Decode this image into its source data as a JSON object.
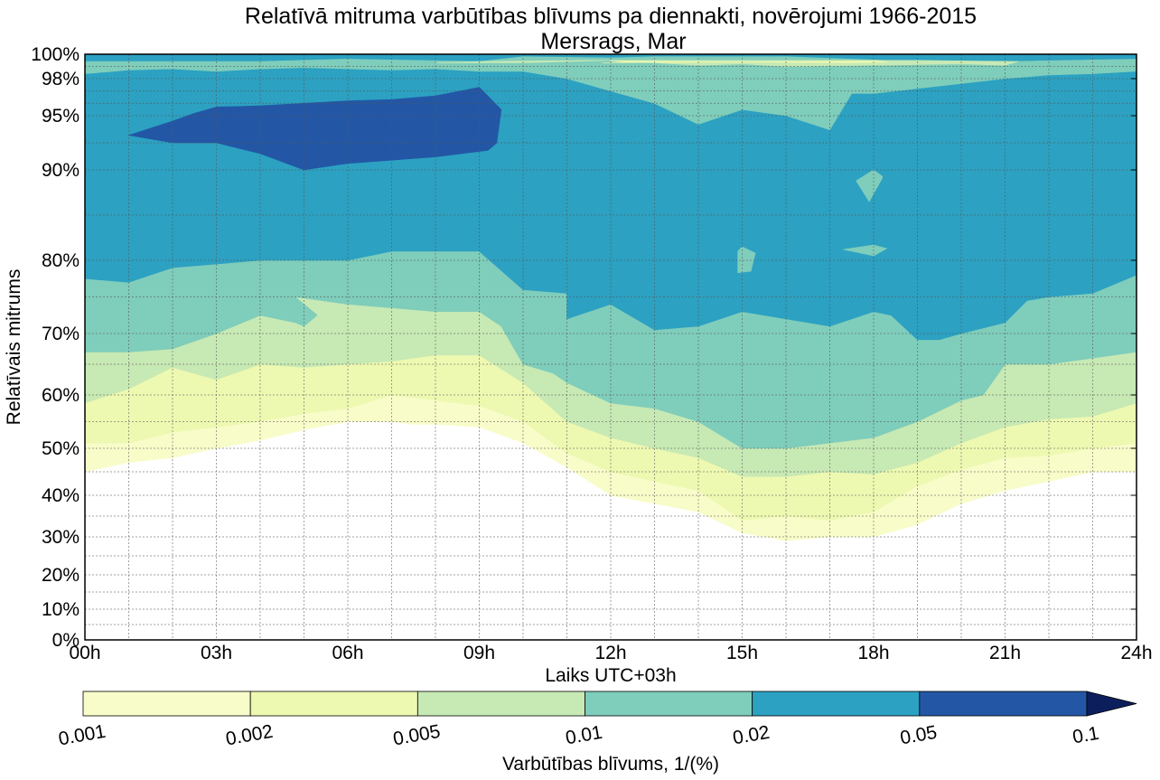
{
  "chart_data": {
    "type": "contourf",
    "title": "Relatīvā mitruma varbūtības blīvums pa diennakti, novērojumi 1966-2015",
    "subtitle": "Mersrags, Mar",
    "xlabel": "Laiks UTC+03h",
    "ylabel": "Relatīvais mitrums",
    "xlim": [
      0,
      24
    ],
    "ylim": [
      0,
      100
    ],
    "x_ticks": [
      0,
      3,
      6,
      9,
      12,
      15,
      18,
      21,
      24
    ],
    "x_tick_labels": [
      "00h",
      "03h",
      "06h",
      "09h",
      "12h",
      "15h",
      "18h",
      "21h",
      "24h"
    ],
    "x_minor_step": 1,
    "y_scale": "nonlinear (expanded near 100%)",
    "y_ticks": [
      0,
      10,
      20,
      30,
      40,
      50,
      60,
      70,
      80,
      90,
      95,
      98,
      100
    ],
    "y_tick_labels": [
      "0%",
      "10%",
      "20%",
      "30%",
      "40%",
      "50%",
      "60%",
      "70%",
      "80%",
      "90%",
      "95%",
      "98%",
      "100%"
    ],
    "grid": true,
    "colorbar": {
      "label": "Varbūtības blīvums, 1/(%)",
      "placement": "bottom",
      "levels": [
        0.001,
        0.002,
        0.005,
        0.01,
        0.02,
        0.05,
        0.1
      ],
      "level_labels": [
        "0.001",
        "0.002",
        "0.005",
        "0.01",
        "0.02",
        "0.05",
        "0.1"
      ],
      "colors": [
        "#f8fcc9",
        "#edf8b1",
        "#c7e9b4",
        "#7fcdbb",
        "#2ca1c2",
        "#2357a6",
        "#0c1f5c"
      ],
      "extend": "max"
    },
    "bands": [
      {
        "level": "0.001-0.002",
        "color": "#f8fcc9",
        "polygon": [
          [
            0,
            45
          ],
          [
            1,
            47
          ],
          [
            2,
            48
          ],
          [
            3,
            50
          ],
          [
            4,
            51.5
          ],
          [
            5,
            53.5
          ],
          [
            6,
            55
          ],
          [
            7,
            55
          ],
          [
            7.5,
            54.5
          ],
          [
            8,
            54.5
          ],
          [
            9,
            54
          ],
          [
            10,
            51
          ],
          [
            11,
            46
          ],
          [
            12,
            40
          ],
          [
            13,
            38
          ],
          [
            14,
            36
          ],
          [
            15,
            31
          ],
          [
            16,
            29
          ],
          [
            17,
            30
          ],
          [
            18,
            30
          ],
          [
            19,
            33
          ],
          [
            20,
            38
          ],
          [
            21,
            41
          ],
          [
            22,
            43
          ],
          [
            23,
            45
          ],
          [
            24,
            45
          ],
          [
            24,
            100
          ],
          [
            0,
            100
          ]
        ]
      },
      {
        "level": "0.002-0.005",
        "color": "#edf8b1",
        "polygon": [
          [
            0,
            51
          ],
          [
            1,
            51
          ],
          [
            2,
            53
          ],
          [
            3,
            54
          ],
          [
            4,
            55
          ],
          [
            5,
            56.5
          ],
          [
            6,
            57.5
          ],
          [
            7,
            60
          ],
          [
            8,
            59
          ],
          [
            9,
            58
          ],
          [
            10,
            55
          ],
          [
            11,
            49
          ],
          [
            12,
            45
          ],
          [
            13,
            43
          ],
          [
            14,
            41
          ],
          [
            15,
            34
          ],
          [
            16,
            35
          ],
          [
            17,
            34
          ],
          [
            18,
            36
          ],
          [
            19,
            42
          ],
          [
            20,
            45.5
          ],
          [
            21,
            48
          ],
          [
            22,
            48.5
          ],
          [
            23,
            50
          ],
          [
            24,
            51
          ],
          [
            24,
            100
          ],
          [
            0,
            100
          ]
        ]
      },
      {
        "level": "0.005-0.01",
        "color": "#c7e9b4",
        "polygon": [
          [
            0,
            58.5
          ],
          [
            1,
            61
          ],
          [
            2,
            64.5
          ],
          [
            3,
            62.5
          ],
          [
            4,
            65
          ],
          [
            5,
            64.5
          ],
          [
            6,
            65
          ],
          [
            7,
            65.5
          ],
          [
            8,
            66.5
          ],
          [
            9,
            66.5
          ],
          [
            10,
            62
          ],
          [
            11,
            55
          ],
          [
            12,
            52
          ],
          [
            13,
            50
          ],
          [
            14,
            48
          ],
          [
            15,
            44
          ],
          [
            16,
            44
          ],
          [
            17,
            45
          ],
          [
            18,
            44.5
          ],
          [
            19,
            47
          ],
          [
            20,
            51
          ],
          [
            21,
            54
          ],
          [
            22,
            55.5
          ],
          [
            23,
            56
          ],
          [
            24,
            58.5
          ],
          [
            24,
            100
          ],
          [
            0,
            100
          ]
        ]
      },
      {
        "level": "0.01-0.02",
        "color": "#7fcdbb",
        "polygon": [
          [
            0,
            67
          ],
          [
            1,
            67
          ],
          [
            2,
            67.5
          ],
          [
            3,
            70
          ],
          [
            4,
            72.5
          ],
          [
            4.8,
            71.5
          ],
          [
            5,
            71
          ],
          [
            5.3,
            72.5
          ],
          [
            4.8,
            75
          ],
          [
            6,
            74
          ],
          [
            7,
            73.5
          ],
          [
            8,
            73
          ],
          [
            9,
            73
          ],
          [
            9.5,
            71
          ],
          [
            10,
            65
          ],
          [
            10.7,
            63.5
          ],
          [
            11,
            62
          ],
          [
            12,
            58.5
          ],
          [
            13,
            57.5
          ],
          [
            14,
            55
          ],
          [
            15,
            50
          ],
          [
            16,
            50
          ],
          [
            17,
            51
          ],
          [
            18,
            52
          ],
          [
            19,
            55
          ],
          [
            20,
            59
          ],
          [
            20.5,
            60
          ],
          [
            21,
            65
          ],
          [
            22,
            65
          ],
          [
            23,
            66
          ],
          [
            24,
            67
          ],
          [
            24,
            100
          ],
          [
            0,
            100
          ]
        ]
      },
      {
        "level": "0.02-0.05",
        "color": "#2ca1c2",
        "polygon": [
          [
            0,
            77.5
          ],
          [
            1,
            77
          ],
          [
            2,
            79
          ],
          [
            3,
            79.5
          ],
          [
            4,
            80
          ],
          [
            5,
            80
          ],
          [
            6,
            80
          ],
          [
            7,
            81
          ],
          [
            8,
            81
          ],
          [
            9,
            81
          ],
          [
            10,
            76
          ],
          [
            11,
            75.5
          ],
          [
            11,
            72
          ],
          [
            12,
            74
          ],
          [
            13,
            70.5
          ],
          [
            14,
            71
          ],
          [
            15,
            73
          ],
          [
            16,
            72
          ],
          [
            17,
            71
          ],
          [
            18,
            73
          ],
          [
            18.4,
            72.5
          ],
          [
            19,
            69
          ],
          [
            19.5,
            69
          ],
          [
            20,
            70
          ],
          [
            21,
            71.5
          ],
          [
            21.5,
            74.5
          ],
          [
            22,
            75
          ],
          [
            23,
            75.5
          ],
          [
            24,
            78
          ],
          [
            24,
            100
          ],
          [
            0,
            100
          ]
        ]
      },
      {
        "level": "0.01-0.02 (upper)",
        "color": "#7fcdbb",
        "polygon": [
          [
            0,
            98.4
          ],
          [
            1,
            98.7
          ],
          [
            2,
            98.8
          ],
          [
            3,
            98.6
          ],
          [
            4,
            98.8
          ],
          [
            5,
            98.9
          ],
          [
            6,
            98.8
          ],
          [
            7,
            98.7
          ],
          [
            8,
            98.8
          ],
          [
            9,
            98.6
          ],
          [
            10,
            98.6
          ],
          [
            11,
            98
          ],
          [
            12,
            97
          ],
          [
            13,
            96
          ],
          [
            14,
            94.2
          ],
          [
            15,
            95.5
          ],
          [
            16,
            95
          ],
          [
            17,
            93.7
          ],
          [
            17.5,
            96.8
          ],
          [
            18,
            96.8
          ],
          [
            19,
            97.2
          ],
          [
            20,
            97.6
          ],
          [
            21,
            98
          ],
          [
            22,
            98.3
          ],
          [
            23,
            98.4
          ],
          [
            24,
            98.6
          ],
          [
            24,
            99.6
          ],
          [
            21,
            99.4
          ],
          [
            19,
            99.4
          ],
          [
            16,
            99.8
          ],
          [
            15,
            99.8
          ],
          [
            13,
            99.8
          ],
          [
            12,
            99.7
          ],
          [
            10,
            99.8
          ],
          [
            9,
            99.4
          ],
          [
            6,
            99.6
          ],
          [
            4,
            99.4
          ],
          [
            0,
            99.4
          ]
        ]
      },
      {
        "level": "0.005-0.01 (upper)",
        "color": "#c7e9b4",
        "polygon": [
          [
            8,
            99.3
          ],
          [
            10,
            99.3
          ],
          [
            12,
            99.5
          ],
          [
            14,
            99.1
          ],
          [
            15,
            99.2
          ],
          [
            16,
            99.0
          ],
          [
            18,
            99.1
          ],
          [
            20,
            99.2
          ],
          [
            21,
            99.1
          ],
          [
            21.3,
            99.4
          ],
          [
            19,
            99.5
          ],
          [
            16,
            99.5
          ],
          [
            13,
            99.5
          ],
          [
            11.5,
            99.5
          ],
          [
            9,
            99.4
          ]
        ]
      },
      {
        "level": "0.005-0.01 (upper-2)",
        "color": "#edf8b1",
        "polygon": [
          [
            11.8,
            99.3
          ],
          [
            12.4,
            99.35
          ],
          [
            12,
            99.45
          ],
          [
            17.5,
            99.3
          ],
          [
            18.3,
            99.35
          ],
          [
            18,
            99.45
          ]
        ]
      },
      {
        "level": "0.05-0.1",
        "color": "#2357a6",
        "polygon": [
          [
            1,
            93.2
          ],
          [
            2,
            94.5
          ],
          [
            2.5,
            95.2
          ],
          [
            3,
            95.7
          ],
          [
            4,
            95.8
          ],
          [
            5,
            96
          ],
          [
            6,
            96.2
          ],
          [
            7,
            96.3
          ],
          [
            8,
            96.6
          ],
          [
            9,
            97.3
          ],
          [
            9.5,
            95.5
          ],
          [
            9.4,
            92.5
          ],
          [
            9.2,
            91.8
          ],
          [
            8,
            91.2
          ],
          [
            6,
            90.6
          ],
          [
            5,
            90
          ],
          [
            4,
            91.5
          ],
          [
            3,
            92.5
          ],
          [
            2,
            92.5
          ]
        ]
      },
      {
        "level": "islands",
        "color": "#7fcdbb",
        "polygon": [
          [
            15,
            81.5
          ],
          [
            15.3,
            80.8
          ],
          [
            15.2,
            78.5
          ],
          [
            14.9,
            78.3
          ],
          [
            14.9,
            81
          ]
        ]
      },
      {
        "level": "islands-2",
        "color": "#7fcdbb",
        "polygon": [
          [
            17.6,
            88.8
          ],
          [
            18,
            90
          ],
          [
            18.2,
            89.3
          ],
          [
            18.2,
            89.1
          ],
          [
            17.9,
            86.5
          ]
        ]
      },
      {
        "level": "islands-3",
        "color": "#7fcdbb",
        "polygon": [
          [
            17.3,
            81.2
          ],
          [
            18,
            81.7
          ],
          [
            18.3,
            81.3
          ],
          [
            18,
            80.5
          ]
        ]
      }
    ]
  }
}
